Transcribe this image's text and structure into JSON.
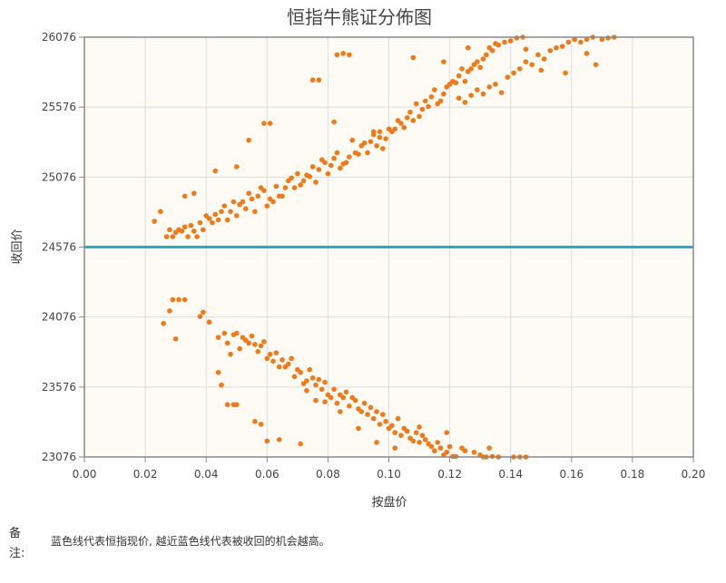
{
  "note": {
    "label": "备注:",
    "text": "蓝色线代表恒指现价, 越近蓝色线代表被收回的机会越高。"
  },
  "chart_data": {
    "type": "scatter",
    "title": "恒指牛熊证分佈图",
    "xlabel": "按盘价",
    "ylabel": "收回价",
    "xlim": [
      0,
      0.2
    ],
    "ylim": [
      23076,
      26076
    ],
    "x_ticks": [
      "0.00",
      "0.02",
      "0.04",
      "0.06",
      "0.08",
      "0.10",
      "0.12",
      "0.14",
      "0.16",
      "0.18",
      "0.20"
    ],
    "y_ticks": [
      "23076",
      "23576",
      "24076",
      "24576",
      "25076",
      "25576",
      "26076"
    ],
    "grid": true,
    "reference_line": {
      "y": 24576,
      "color": "#2aa8c4"
    },
    "colors": {
      "points": "#f07a1a",
      "plot_bg": "#fdfbf3",
      "grid": "#dddddd",
      "frame": "#888888"
    },
    "series": [
      {
        "points": [
          [
            0.023,
            24760
          ],
          [
            0.025,
            24830
          ],
          [
            0.027,
            24650
          ],
          [
            0.028,
            24700
          ],
          [
            0.029,
            24650
          ],
          [
            0.03,
            24680
          ],
          [
            0.031,
            24700
          ],
          [
            0.032,
            24690
          ],
          [
            0.033,
            24720
          ],
          [
            0.034,
            24650
          ],
          [
            0.035,
            24730
          ],
          [
            0.036,
            24690
          ],
          [
            0.037,
            24650
          ],
          [
            0.038,
            24750
          ],
          [
            0.039,
            24700
          ],
          [
            0.04,
            24800
          ],
          [
            0.041,
            24780
          ],
          [
            0.042,
            24750
          ],
          [
            0.043,
            24810
          ],
          [
            0.044,
            24770
          ],
          [
            0.045,
            24830
          ],
          [
            0.046,
            24870
          ],
          [
            0.047,
            24770
          ],
          [
            0.048,
            24830
          ],
          [
            0.049,
            24900
          ],
          [
            0.05,
            24800
          ],
          [
            0.051,
            24880
          ],
          [
            0.052,
            24900
          ],
          [
            0.053,
            24850
          ],
          [
            0.054,
            24960
          ],
          [
            0.055,
            24920
          ],
          [
            0.056,
            24830
          ],
          [
            0.057,
            24940
          ],
          [
            0.058,
            25000
          ],
          [
            0.059,
            24980
          ],
          [
            0.06,
            24870
          ],
          [
            0.061,
            24920
          ],
          [
            0.062,
            24900
          ],
          [
            0.063,
            25010
          ],
          [
            0.064,
            24940
          ],
          [
            0.065,
            24940
          ],
          [
            0.066,
            25000
          ],
          [
            0.067,
            25050
          ],
          [
            0.068,
            25070
          ],
          [
            0.069,
            25000
          ],
          [
            0.07,
            25100
          ],
          [
            0.071,
            25020
          ],
          [
            0.072,
            25050
          ],
          [
            0.073,
            25090
          ],
          [
            0.074,
            25080
          ],
          [
            0.075,
            25150
          ],
          [
            0.076,
            25040
          ],
          [
            0.077,
            25130
          ],
          [
            0.078,
            25200
          ],
          [
            0.079,
            25180
          ],
          [
            0.08,
            25100
          ],
          [
            0.081,
            25160
          ],
          [
            0.082,
            25210
          ],
          [
            0.083,
            25250
          ],
          [
            0.084,
            25140
          ],
          [
            0.085,
            25170
          ],
          [
            0.086,
            25180
          ],
          [
            0.087,
            25220
          ],
          [
            0.088,
            25340
          ],
          [
            0.089,
            25250
          ],
          [
            0.09,
            25240
          ],
          [
            0.091,
            25300
          ],
          [
            0.092,
            25320
          ],
          [
            0.093,
            25250
          ],
          [
            0.094,
            25330
          ],
          [
            0.095,
            25400
          ],
          [
            0.096,
            25300
          ],
          [
            0.097,
            25360
          ],
          [
            0.098,
            25280
          ],
          [
            0.099,
            25350
          ],
          [
            0.1,
            25420
          ],
          [
            0.101,
            25400
          ],
          [
            0.102,
            25420
          ],
          [
            0.103,
            25480
          ],
          [
            0.104,
            25460
          ],
          [
            0.105,
            25430
          ],
          [
            0.106,
            25500
          ],
          [
            0.107,
            25540
          ],
          [
            0.108,
            25480
          ],
          [
            0.109,
            25600
          ],
          [
            0.11,
            25510
          ],
          [
            0.111,
            25560
          ],
          [
            0.112,
            25620
          ],
          [
            0.113,
            25580
          ],
          [
            0.114,
            25650
          ],
          [
            0.115,
            25700
          ],
          [
            0.116,
            25600
          ],
          [
            0.117,
            25620
          ],
          [
            0.118,
            25670
          ],
          [
            0.119,
            25720
          ],
          [
            0.12,
            25740
          ],
          [
            0.121,
            25760
          ],
          [
            0.122,
            25750
          ],
          [
            0.123,
            25800
          ],
          [
            0.124,
            25850
          ],
          [
            0.125,
            25760
          ],
          [
            0.126,
            25830
          ],
          [
            0.127,
            25850
          ],
          [
            0.128,
            25880
          ],
          [
            0.129,
            25900
          ],
          [
            0.13,
            25860
          ],
          [
            0.131,
            25920
          ],
          [
            0.132,
            25950
          ],
          [
            0.133,
            26000
          ],
          [
            0.134,
            25980
          ],
          [
            0.136,
            26020
          ],
          [
            0.138,
            26040
          ],
          [
            0.14,
            26050
          ],
          [
            0.142,
            26070
          ],
          [
            0.144,
            26076
          ],
          [
            0.123,
            25640
          ],
          [
            0.125,
            25610
          ],
          [
            0.127,
            25660
          ],
          [
            0.129,
            25700
          ],
          [
            0.131,
            25670
          ],
          [
            0.133,
            25720
          ],
          [
            0.135,
            25740
          ],
          [
            0.137,
            25680
          ],
          [
            0.139,
            25790
          ],
          [
            0.141,
            25820
          ],
          [
            0.143,
            25850
          ],
          [
            0.145,
            25900
          ],
          [
            0.147,
            25880
          ],
          [
            0.149,
            25950
          ],
          [
            0.151,
            25920
          ],
          [
            0.153,
            25980
          ],
          [
            0.155,
            26000
          ],
          [
            0.157,
            26010
          ],
          [
            0.159,
            26040
          ],
          [
            0.161,
            26060
          ],
          [
            0.163,
            26040
          ],
          [
            0.165,
            26060
          ],
          [
            0.167,
            26076
          ],
          [
            0.17,
            26060
          ],
          [
            0.172,
            26070
          ],
          [
            0.174,
            26076
          ],
          [
            0.033,
            24940
          ],
          [
            0.036,
            24960
          ],
          [
            0.043,
            25120
          ],
          [
            0.05,
            25150
          ],
          [
            0.054,
            25340
          ],
          [
            0.059,
            25460
          ],
          [
            0.061,
            25460
          ],
          [
            0.075,
            25770
          ],
          [
            0.077,
            25770
          ],
          [
            0.083,
            25950
          ],
          [
            0.085,
            25960
          ],
          [
            0.087,
            25950
          ],
          [
            0.082,
            25470
          ],
          [
            0.095,
            25380
          ],
          [
            0.097,
            25400
          ],
          [
            0.108,
            25930
          ],
          [
            0.118,
            25900
          ],
          [
            0.126,
            26000
          ],
          [
            0.135,
            26030
          ],
          [
            0.145,
            25990
          ],
          [
            0.15,
            25840
          ],
          [
            0.158,
            25820
          ],
          [
            0.165,
            25960
          ],
          [
            0.168,
            25880
          ]
        ]
      },
      {
        "points": [
          [
            0.026,
            24030
          ],
          [
            0.028,
            24120
          ],
          [
            0.029,
            24200
          ],
          [
            0.03,
            23920
          ],
          [
            0.031,
            24200
          ],
          [
            0.033,
            24200
          ],
          [
            0.038,
            24080
          ],
          [
            0.039,
            24110
          ],
          [
            0.041,
            24040
          ],
          [
            0.044,
            23930
          ],
          [
            0.046,
            23960
          ],
          [
            0.047,
            23890
          ],
          [
            0.048,
            23810
          ],
          [
            0.049,
            23950
          ],
          [
            0.05,
            23960
          ],
          [
            0.051,
            23850
          ],
          [
            0.052,
            23930
          ],
          [
            0.053,
            23910
          ],
          [
            0.054,
            23890
          ],
          [
            0.055,
            23940
          ],
          [
            0.056,
            23880
          ],
          [
            0.057,
            23830
          ],
          [
            0.058,
            23870
          ],
          [
            0.059,
            23900
          ],
          [
            0.06,
            23780
          ],
          [
            0.061,
            23810
          ],
          [
            0.062,
            23760
          ],
          [
            0.063,
            23820
          ],
          [
            0.064,
            23720
          ],
          [
            0.065,
            23770
          ],
          [
            0.066,
            23720
          ],
          [
            0.067,
            23740
          ],
          [
            0.068,
            23780
          ],
          [
            0.069,
            23650
          ],
          [
            0.07,
            23700
          ],
          [
            0.071,
            23680
          ],
          [
            0.072,
            23600
          ],
          [
            0.073,
            23620
          ],
          [
            0.074,
            23700
          ],
          [
            0.075,
            23640
          ],
          [
            0.076,
            23590
          ],
          [
            0.077,
            23630
          ],
          [
            0.078,
            23560
          ],
          [
            0.079,
            23610
          ],
          [
            0.08,
            23520
          ],
          [
            0.081,
            23500
          ],
          [
            0.082,
            23560
          ],
          [
            0.083,
            23460
          ],
          [
            0.084,
            23520
          ],
          [
            0.085,
            23500
          ],
          [
            0.086,
            23540
          ],
          [
            0.087,
            23440
          ],
          [
            0.088,
            23500
          ],
          [
            0.089,
            23480
          ],
          [
            0.09,
            23420
          ],
          [
            0.091,
            23400
          ],
          [
            0.092,
            23460
          ],
          [
            0.093,
            23380
          ],
          [
            0.094,
            23430
          ],
          [
            0.095,
            23350
          ],
          [
            0.096,
            23400
          ],
          [
            0.097,
            23310
          ],
          [
            0.098,
            23380
          ],
          [
            0.099,
            23330
          ],
          [
            0.1,
            23280
          ],
          [
            0.101,
            23300
          ],
          [
            0.102,
            23250
          ],
          [
            0.103,
            23350
          ],
          [
            0.104,
            23230
          ],
          [
            0.105,
            23280
          ],
          [
            0.106,
            23260
          ],
          [
            0.107,
            23210
          ],
          [
            0.108,
            23190
          ],
          [
            0.109,
            23250
          ],
          [
            0.11,
            23180
          ],
          [
            0.111,
            23230
          ],
          [
            0.112,
            23200
          ],
          [
            0.113,
            23170
          ],
          [
            0.114,
            23150
          ],
          [
            0.115,
            23120
          ],
          [
            0.116,
            23180
          ],
          [
            0.117,
            23140
          ],
          [
            0.118,
            23090
          ],
          [
            0.119,
            23110
          ],
          [
            0.12,
            23150
          ],
          [
            0.121,
            23080
          ],
          [
            0.122,
            23080
          ],
          [
            0.125,
            23120
          ],
          [
            0.128,
            23110
          ],
          [
            0.13,
            23090
          ],
          [
            0.132,
            23076
          ],
          [
            0.134,
            23080
          ],
          [
            0.136,
            23076
          ],
          [
            0.141,
            23076
          ],
          [
            0.143,
            23076
          ],
          [
            0.145,
            23076
          ],
          [
            0.044,
            23680
          ],
          [
            0.045,
            23590
          ],
          [
            0.047,
            23450
          ],
          [
            0.049,
            23450
          ],
          [
            0.05,
            23450
          ],
          [
            0.056,
            23330
          ],
          [
            0.058,
            23310
          ],
          [
            0.06,
            23190
          ],
          [
            0.064,
            23200
          ],
          [
            0.071,
            23170
          ],
          [
            0.073,
            23550
          ],
          [
            0.076,
            23480
          ],
          [
            0.079,
            23470
          ],
          [
            0.084,
            23400
          ],
          [
            0.09,
            23280
          ],
          [
            0.096,
            23180
          ],
          [
            0.102,
            23140
          ],
          [
            0.11,
            23290
          ],
          [
            0.117,
            23140
          ],
          [
            0.119,
            23250
          ],
          [
            0.124,
            23140
          ],
          [
            0.131,
            23076
          ],
          [
            0.133,
            23140
          ]
        ]
      }
    ]
  }
}
